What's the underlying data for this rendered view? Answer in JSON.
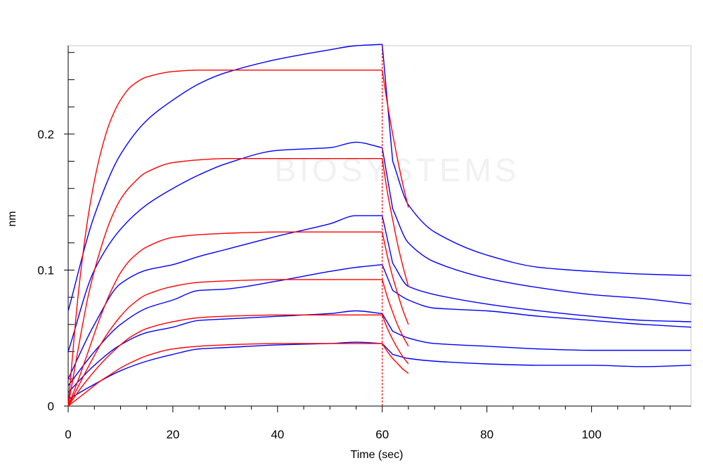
{
  "chart_data": {
    "type": "line",
    "title": "",
    "xlabel": "Time (sec)",
    "ylabel": "nm",
    "xlim": [
      0,
      119
    ],
    "ylim": [
      0,
      0.265
    ],
    "x_ticks": [
      0,
      20,
      40,
      60,
      80,
      100
    ],
    "x_tick_labels": [
      "0",
      "20",
      "40",
      "60",
      "80",
      "100"
    ],
    "y_ticks": [
      0,
      0.1,
      0.2
    ],
    "y_tick_labels": [
      "0",
      "0.1",
      "0.2"
    ],
    "grid": false,
    "legend": "none",
    "association_end": 60,
    "vertical_marker": {
      "x": 60,
      "style": "dashed",
      "color": "#ff0000"
    },
    "watermark": "BIOSYSTEMS",
    "colors": {
      "measured": "#0000ff",
      "fit": "#ff0000",
      "axis": "#000000",
      "frame": "#c8c8c8"
    },
    "series": [
      {
        "measured": {
          "x": [
            0,
            5,
            10,
            15,
            20,
            25,
            30,
            40,
            50,
            55,
            60,
            62,
            65,
            70,
            80,
            90,
            100,
            110,
            119
          ],
          "y": [
            0.07,
            0.14,
            0.185,
            0.21,
            0.225,
            0.237,
            0.245,
            0.255,
            0.262,
            0.265,
            0.266,
            0.18,
            0.148,
            0.128,
            0.111,
            0.102,
            0.099,
            0.097,
            0.096
          ]
        },
        "fit": {
          "x": [
            0,
            2,
            4,
            6,
            8,
            10,
            12,
            15,
            20,
            25,
            30,
            40,
            50,
            60,
            61,
            62,
            63,
            64,
            65
          ],
          "y": [
            0,
            0.085,
            0.144,
            0.183,
            0.209,
            0.225,
            0.235,
            0.242,
            0.246,
            0.247,
            0.247,
            0.247,
            0.247,
            0.247,
            0.222,
            0.2,
            0.18,
            0.162,
            0.146
          ]
        }
      },
      {
        "measured": {
          "x": [
            0,
            5,
            10,
            15,
            20,
            25,
            30,
            40,
            50,
            55,
            60,
            62,
            65,
            70,
            80,
            90,
            100,
            110,
            119
          ],
          "y": [
            0.04,
            0.1,
            0.13,
            0.148,
            0.16,
            0.17,
            0.178,
            0.188,
            0.19,
            0.194,
            0.19,
            0.145,
            0.12,
            0.106,
            0.094,
            0.087,
            0.082,
            0.079,
            0.075
          ]
        },
        "fit": {
          "x": [
            0,
            2,
            4,
            6,
            8,
            10,
            12,
            15,
            20,
            25,
            30,
            40,
            50,
            60,
            61,
            62,
            63,
            64,
            65
          ],
          "y": [
            0,
            0.044,
            0.084,
            0.113,
            0.136,
            0.152,
            0.162,
            0.172,
            0.179,
            0.181,
            0.182,
            0.182,
            0.182,
            0.182,
            0.157,
            0.137,
            0.118,
            0.102,
            0.088
          ]
        }
      },
      {
        "measured": {
          "x": [
            0,
            5,
            10,
            15,
            20,
            25,
            30,
            40,
            50,
            55,
            60,
            62,
            65,
            70,
            80,
            90,
            100,
            110,
            119
          ],
          "y": [
            0.02,
            0.06,
            0.09,
            0.1,
            0.104,
            0.11,
            0.115,
            0.125,
            0.134,
            0.14,
            0.14,
            0.105,
            0.088,
            0.082,
            0.075,
            0.07,
            0.066,
            0.063,
            0.062
          ]
        },
        "fit": {
          "x": [
            0,
            2,
            4,
            6,
            8,
            10,
            12,
            15,
            20,
            25,
            30,
            40,
            50,
            60,
            61,
            62,
            63,
            64,
            65
          ],
          "y": [
            0,
            0.02,
            0.042,
            0.064,
            0.083,
            0.098,
            0.108,
            0.117,
            0.124,
            0.126,
            0.127,
            0.128,
            0.128,
            0.128,
            0.11,
            0.095,
            0.082,
            0.07,
            0.06
          ]
        }
      },
      {
        "measured": {
          "x": [
            0,
            5,
            10,
            15,
            20,
            25,
            30,
            40,
            50,
            55,
            60,
            62,
            65,
            70,
            80,
            90,
            100,
            110,
            119
          ],
          "y": [
            0.015,
            0.04,
            0.06,
            0.072,
            0.078,
            0.085,
            0.086,
            0.092,
            0.099,
            0.102,
            0.104,
            0.085,
            0.078,
            0.072,
            0.07,
            0.066,
            0.063,
            0.06,
            0.058
          ]
        },
        "fit": {
          "x": [
            0,
            2,
            4,
            6,
            8,
            10,
            12,
            15,
            20,
            25,
            30,
            40,
            50,
            60,
            61,
            62,
            63,
            64,
            65
          ],
          "y": [
            0,
            0.015,
            0.03,
            0.044,
            0.056,
            0.066,
            0.074,
            0.082,
            0.088,
            0.091,
            0.092,
            0.093,
            0.093,
            0.093,
            0.08,
            0.069,
            0.059,
            0.051,
            0.044
          ]
        }
      },
      {
        "measured": {
          "x": [
            0,
            5,
            10,
            15,
            20,
            25,
            30,
            40,
            50,
            55,
            60,
            62,
            65,
            70,
            80,
            90,
            100,
            110,
            119
          ],
          "y": [
            0.01,
            0.03,
            0.045,
            0.054,
            0.058,
            0.063,
            0.064,
            0.066,
            0.068,
            0.07,
            0.068,
            0.055,
            0.05,
            0.046,
            0.044,
            0.042,
            0.041,
            0.041,
            0.041
          ]
        },
        "fit": {
          "x": [
            0,
            2,
            4,
            6,
            8,
            10,
            12,
            15,
            20,
            25,
            30,
            40,
            50,
            60,
            61,
            62,
            63,
            64,
            65
          ],
          "y": [
            0,
            0.011,
            0.021,
            0.03,
            0.038,
            0.045,
            0.051,
            0.057,
            0.062,
            0.065,
            0.066,
            0.067,
            0.067,
            0.067,
            0.057,
            0.049,
            0.042,
            0.036,
            0.031
          ]
        }
      },
      {
        "measured": {
          "x": [
            0,
            5,
            10,
            15,
            20,
            25,
            30,
            40,
            50,
            55,
            60,
            62,
            65,
            70,
            80,
            90,
            100,
            110,
            119
          ],
          "y": [
            0.005,
            0.016,
            0.026,
            0.033,
            0.038,
            0.042,
            0.043,
            0.045,
            0.046,
            0.047,
            0.046,
            0.038,
            0.035,
            0.033,
            0.031,
            0.03,
            0.03,
            0.029,
            0.03
          ]
        },
        "fit": {
          "x": [
            0,
            2,
            4,
            6,
            8,
            10,
            12,
            15,
            20,
            25,
            30,
            40,
            50,
            60,
            61,
            62,
            63,
            64,
            65
          ],
          "y": [
            0,
            0.006,
            0.012,
            0.018,
            0.023,
            0.028,
            0.032,
            0.037,
            0.042,
            0.044,
            0.045,
            0.046,
            0.046,
            0.046,
            0.04,
            0.035,
            0.031,
            0.027,
            0.024
          ]
        }
      }
    ]
  }
}
